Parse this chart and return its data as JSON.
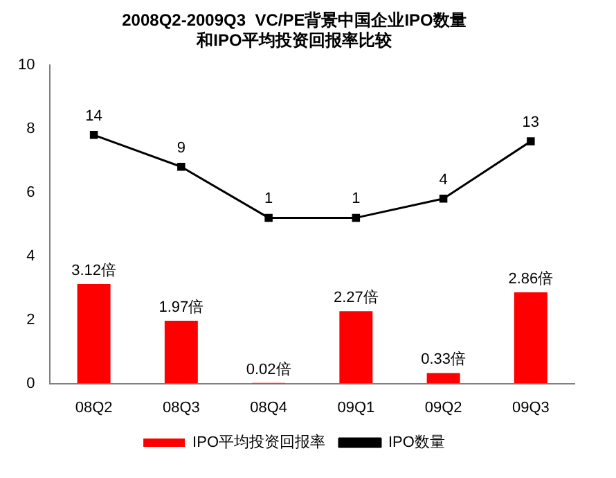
{
  "chart_data": {
    "type": "bar",
    "title": [
      "2008Q2-2009Q3  VC/PE背景中国企业IPO数量",
      "和IPO平均投资回报率比较"
    ],
    "categories": [
      "08Q2",
      "08Q3",
      "08Q4",
      "09Q1",
      "09Q2",
      "09Q3"
    ],
    "series": [
      {
        "name": "IPO平均投资回报率",
        "color": "#ff0000",
        "values": [
          3.12,
          1.97,
          0.02,
          2.27,
          0.33,
          2.86
        ],
        "value_labels": [
          "3.12倍",
          "1.97倍",
          "0.02倍",
          "2.27倍",
          "0.33倍",
          "2.86倍"
        ]
      },
      {
        "name": "IPO数量",
        "type": "line",
        "axis": "y2",
        "color": "#000000",
        "values": [
          14,
          9,
          1,
          1,
          4,
          13
        ],
        "value_labels": [
          "14",
          "9",
          "1",
          "1",
          "4",
          "13"
        ],
        "marker": "square"
      }
    ],
    "ylim": [
      0,
      10
    ],
    "yticks": [
      0,
      2,
      4,
      6,
      8,
      10
    ],
    "y2lim": [
      -25,
      25
    ],
    "grid": false,
    "legend": "bottom"
  }
}
